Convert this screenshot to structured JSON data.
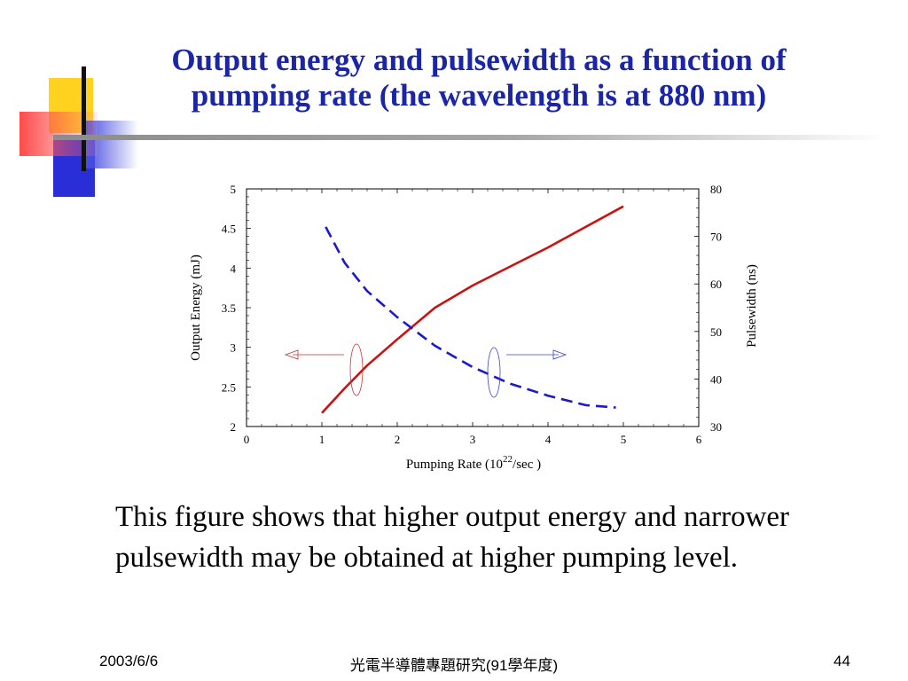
{
  "slide": {
    "title": "Output energy and pulsewidth as a function of pumping rate (the wavelength is at 880 nm)",
    "body": "This figure shows that higher output energy and narrower pulsewidth may be obtained at higher pumping level.",
    "footer": {
      "date": "2003/6/6",
      "course": "光電半導體專題研究(91學年度)",
      "page": "44"
    }
  },
  "chart_data": {
    "type": "line",
    "xlabel_prefix": "Pumping Rate (10",
    "xlabel_exponent": "22",
    "xlabel_suffix": "/sec )",
    "ylabel": "Output Energy (mJ)",
    "y2label": "Pulsewidth (ns)",
    "xlim": [
      0,
      6
    ],
    "ylim": [
      2,
      5
    ],
    "y2lim": [
      30,
      80
    ],
    "x_ticks": [
      "0",
      "1",
      "2",
      "3",
      "4",
      "5",
      "6"
    ],
    "y_ticks": [
      "2",
      "2.5",
      "3",
      "3.5",
      "4",
      "4.5",
      "5"
    ],
    "y2_ticks": [
      "30",
      "40",
      "50",
      "60",
      "70",
      "80"
    ],
    "series": [
      {
        "axis": "left",
        "color": "#cc1111",
        "style": "solid",
        "points": [
          [
            1.0,
            2.17
          ],
          [
            1.3,
            2.48
          ],
          [
            1.6,
            2.77
          ],
          [
            2.0,
            3.1
          ],
          [
            2.5,
            3.5
          ],
          [
            3.0,
            3.78
          ],
          [
            3.5,
            4.02
          ],
          [
            4.0,
            4.26
          ],
          [
            4.5,
            4.52
          ],
          [
            5.0,
            4.78
          ]
        ]
      },
      {
        "axis": "right",
        "color": "#1a1acc",
        "style": "dashed",
        "points": [
          [
            1.05,
            72.0
          ],
          [
            1.3,
            64.5
          ],
          [
            1.6,
            58.5
          ],
          [
            2.0,
            53.0
          ],
          [
            2.5,
            47.0
          ],
          [
            3.0,
            42.5
          ],
          [
            3.5,
            39.0
          ],
          [
            4.0,
            36.5
          ],
          [
            4.5,
            34.5
          ],
          [
            4.9,
            34.0
          ]
        ]
      }
    ]
  }
}
